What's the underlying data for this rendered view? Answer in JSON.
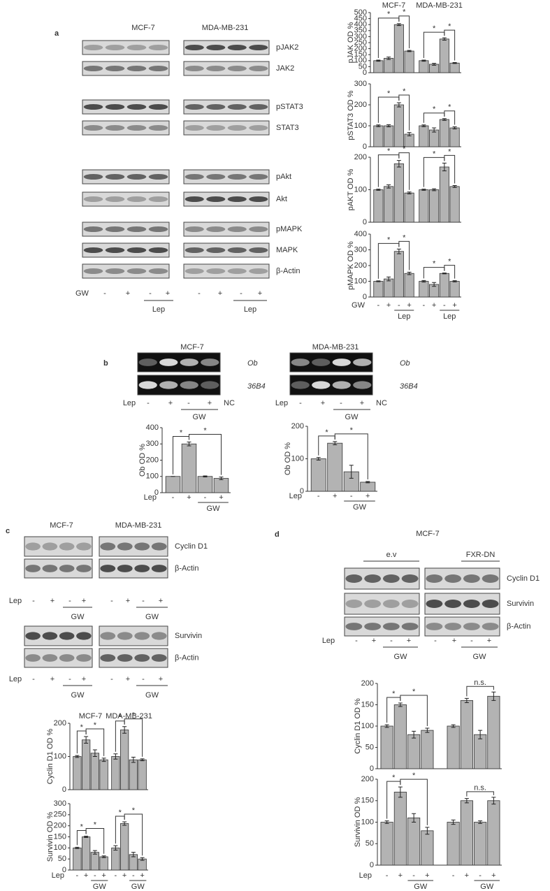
{
  "figure": {
    "a": {
      "label": "a",
      "headers": [
        "MCF-7",
        "MDA-MB-231"
      ],
      "rows": [
        "pJAK2",
        "JAK2",
        "pSTAT3",
        "STAT3",
        "pAkt",
        "Akt",
        "pMAPK",
        "MAPK",
        "β-Actin"
      ],
      "treatment": "GW",
      "signs": [
        "-",
        "+",
        "-",
        "+",
        "-",
        "+",
        "-",
        "+"
      ],
      "group": [
        "Lep",
        "Lep"
      ]
    },
    "b": {
      "label": "b",
      "gels": [
        {
          "header": "MCF-7",
          "rows": [
            "Ob",
            "36B4"
          ],
          "treatment": "Lep",
          "signs": [
            "-",
            "+",
            "-",
            "+",
            "NC"
          ],
          "group": "GW"
        },
        {
          "header": "MDA-MB-231",
          "rows": [
            "Ob",
            "36B4"
          ],
          "treatment": "Lep",
          "signs": [
            "-",
            "+",
            "-",
            "+",
            "NC"
          ],
          "group": "GW"
        }
      ]
    },
    "c": {
      "label": "c",
      "headers": [
        "MCF-7",
        "MDA-MB-231"
      ],
      "blots": [
        {
          "rows": [
            "Cyclin D1",
            "β-Actin"
          ],
          "treatment": "Lep",
          "signs": [
            "-",
            "+",
            "-",
            "+",
            "-",
            "+",
            "-",
            "+"
          ],
          "group": [
            "GW",
            "GW"
          ]
        },
        {
          "rows": [
            "Survivin",
            "β-Actin"
          ],
          "treatment": "Lep",
          "signs": [
            "-",
            "+",
            "-",
            "+",
            "-",
            "+",
            "-",
            "+"
          ],
          "group": [
            "GW",
            "GW"
          ]
        }
      ]
    },
    "d": {
      "label": "d",
      "header": "MCF-7",
      "groups": [
        "e.v",
        "FXR-DN"
      ],
      "rows": [
        "Cyclin D1",
        "Survivin",
        "β-Actin"
      ],
      "treatment": "Lep",
      "signs": [
        "-",
        "+",
        "-",
        "+",
        "-",
        "+",
        "-",
        "+"
      ],
      "group": [
        "GW",
        "GW"
      ]
    }
  },
  "chart_data": [
    {
      "type": "bar",
      "y_label": "pJAK OD %",
      "group_labels": [
        "MCF-7",
        "MDA-MB-231"
      ],
      "series": [
        {
          "color": "#b3b3b3",
          "values": [
            100,
            120,
            400,
            180,
            100,
            70,
            280,
            80
          ],
          "errors": [
            5,
            10,
            8,
            5,
            5,
            8,
            10,
            4
          ]
        }
      ],
      "ylim": [
        0,
        500
      ],
      "yticks": [
        0,
        50,
        100,
        150,
        200,
        250,
        300,
        350,
        400,
        450,
        500
      ],
      "annotations": [
        "*",
        "*",
        "*",
        "*"
      ]
    },
    {
      "type": "bar",
      "y_label": "pSTAT3 OD %",
      "series": [
        {
          "color": "#b3b3b3",
          "values": [
            100,
            100,
            200,
            60,
            100,
            80,
            130,
            90
          ],
          "errors": [
            4,
            5,
            10,
            8,
            4,
            10,
            4,
            5
          ]
        }
      ],
      "ylim": [
        0,
        300
      ],
      "yticks": [
        0,
        100,
        200,
        300
      ],
      "annotations": [
        "*",
        "*",
        "*",
        "*"
      ]
    },
    {
      "type": "bar",
      "y_label": "pAKT OD %",
      "series": [
        {
          "color": "#b3b3b3",
          "values": [
            100,
            110,
            180,
            90,
            100,
            100,
            170,
            110
          ],
          "errors": [
            2,
            5,
            10,
            3,
            2,
            3,
            12,
            3
          ]
        }
      ],
      "ylim": [
        0,
        200
      ],
      "yticks": [
        0,
        100,
        200
      ],
      "annotations": [
        "*",
        "*",
        "*",
        "*"
      ]
    },
    {
      "type": "bar",
      "y_label": "pMAPK OD %",
      "x_label": "GW",
      "categories": [
        "-",
        "+",
        "-",
        "+",
        "-",
        "+",
        "-",
        "+"
      ],
      "sub_labels": [
        "Lep",
        "Lep"
      ],
      "series": [
        {
          "color": "#b3b3b3",
          "values": [
            100,
            115,
            290,
            150,
            100,
            80,
            150,
            100
          ],
          "errors": [
            3,
            12,
            15,
            8,
            5,
            12,
            3,
            4
          ]
        }
      ],
      "ylim": [
        0,
        400
      ],
      "yticks": [
        0,
        100,
        200,
        300,
        400
      ],
      "annotations": [
        "*",
        "*",
        "*",
        "*"
      ]
    },
    {
      "type": "bar",
      "y_label": "Ob OD %",
      "x_label": "Lep",
      "categories": [
        "-",
        "+",
        "-",
        "+"
      ],
      "sub_labels": [
        "GW"
      ],
      "series": [
        {
          "color": "#b3b3b3",
          "values": [
            100,
            300,
            100,
            88
          ],
          "errors": [
            0,
            12,
            3,
            8
          ]
        }
      ],
      "ylim": [
        0,
        400
      ],
      "yticks": [
        0,
        100,
        200,
        300,
        400
      ],
      "annotations": [
        "*",
        "*"
      ]
    },
    {
      "type": "bar",
      "y_label": "Ob OD %",
      "x_label": "Lep",
      "categories": [
        "-",
        "+",
        "-",
        "+"
      ],
      "sub_labels": [
        "GW"
      ],
      "series": [
        {
          "color": "#b3b3b3",
          "values": [
            100,
            148,
            60,
            28
          ],
          "errors": [
            4,
            5,
            20,
            2
          ]
        }
      ],
      "ylim": [
        0,
        200
      ],
      "yticks": [
        0,
        100,
        200
      ],
      "annotations": [
        "*",
        "*"
      ]
    },
    {
      "type": "bar",
      "y_label": "Cyclin D1 OD %",
      "group_labels": [
        "MCF-7",
        "MDA-MB-231"
      ],
      "series": [
        {
          "color": "#b3b3b3",
          "values": [
            100,
            150,
            110,
            90,
            100,
            180,
            90,
            90
          ],
          "errors": [
            3,
            10,
            10,
            5,
            8,
            10,
            8,
            3
          ]
        }
      ],
      "ylim": [
        0,
        200
      ],
      "yticks": [
        0,
        100,
        200
      ],
      "annotations": [
        "*",
        "*",
        "*",
        "*"
      ]
    },
    {
      "type": "bar",
      "y_label": "Survivin OD %",
      "x_label": "Lep",
      "categories": [
        "-",
        "+",
        "-",
        "+",
        "-",
        "+",
        "-",
        "+"
      ],
      "sub_labels": [
        "GW",
        "GW"
      ],
      "series": [
        {
          "color": "#b3b3b3",
          "values": [
            100,
            150,
            80,
            60,
            100,
            210,
            70,
            50
          ],
          "errors": [
            3,
            3,
            8,
            4,
            10,
            8,
            10,
            6
          ]
        }
      ],
      "ylim": [
        0,
        300
      ],
      "yticks": [
        0,
        50,
        100,
        150,
        200,
        250,
        300
      ],
      "annotations": [
        "*",
        "*",
        "*",
        "*"
      ]
    },
    {
      "type": "bar",
      "y_label": "Cyclin D1 OD %",
      "series": [
        {
          "color": "#b3b3b3",
          "values": [
            100,
            150,
            80,
            90,
            100,
            160,
            80,
            170
          ],
          "errors": [
            3,
            4,
            8,
            5,
            3,
            5,
            10,
            10
          ]
        }
      ],
      "ylim": [
        0,
        200
      ],
      "yticks": [
        0,
        50,
        100,
        150,
        200
      ],
      "annotations": [
        "*",
        "*",
        "n.s."
      ]
    },
    {
      "type": "bar",
      "y_label": "Survivin OD %",
      "x_label": "Lep",
      "categories": [
        "-",
        "+",
        "-",
        "+",
        "-",
        "+",
        "-",
        "+"
      ],
      "sub_labels": [
        "GW",
        "GW"
      ],
      "series": [
        {
          "color": "#b3b3b3",
          "values": [
            100,
            170,
            110,
            80,
            100,
            150,
            100,
            150
          ],
          "errors": [
            3,
            12,
            10,
            8,
            5,
            5,
            3,
            8
          ]
        }
      ],
      "ylim": [
        0,
        200
      ],
      "yticks": [
        0,
        50,
        100,
        150,
        200
      ],
      "annotations": [
        "*",
        "*",
        "n.s."
      ]
    }
  ]
}
